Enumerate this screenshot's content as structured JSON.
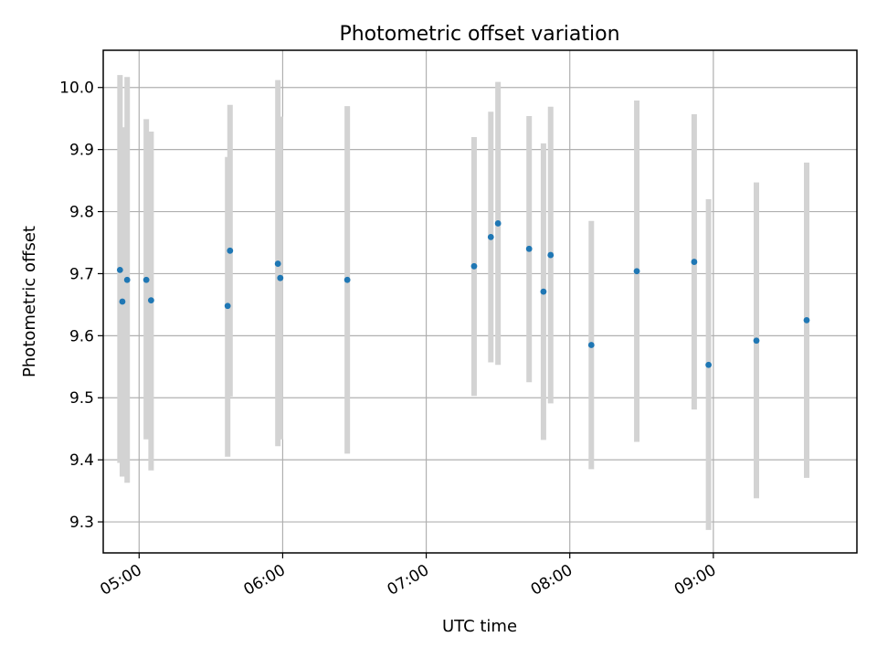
{
  "chart_data": {
    "type": "scatter",
    "title": "Photometric offset variation",
    "xlabel": "UTC time",
    "ylabel": "Photometric offset",
    "x_is_time": true,
    "xlim": [
      "04:45",
      "10:00"
    ],
    "ylim": [
      9.25,
      10.06
    ],
    "x_ticks": [
      "05:00",
      "06:00",
      "07:00",
      "08:00",
      "09:00"
    ],
    "y_ticks": [
      9.3,
      9.4,
      9.5,
      9.6,
      9.7,
      9.8,
      9.9,
      10.0
    ],
    "grid": true,
    "marker_color": "#1f77b4",
    "errorbar_color": "#d3d3d3",
    "points": [
      {
        "x": "04:52",
        "y": 9.706,
        "ylow": 9.395,
        "yhigh": 10.02
      },
      {
        "x": "04:53",
        "y": 9.655,
        "ylow": 9.373,
        "yhigh": 9.936
      },
      {
        "x": "04:55",
        "y": 9.69,
        "ylow": 9.363,
        "yhigh": 10.017
      },
      {
        "x": "05:03",
        "y": 9.69,
        "ylow": 9.433,
        "yhigh": 9.949
      },
      {
        "x": "05:05",
        "y": 9.657,
        "ylow": 9.383,
        "yhigh": 9.929
      },
      {
        "x": "05:37",
        "y": 9.648,
        "ylow": 9.405,
        "yhigh": 9.888
      },
      {
        "x": "05:38",
        "y": 9.737,
        "ylow": 9.502,
        "yhigh": 9.972
      },
      {
        "x": "05:58",
        "y": 9.716,
        "ylow": 9.422,
        "yhigh": 10.012
      },
      {
        "x": "05:59",
        "y": 9.693,
        "ylow": 9.433,
        "yhigh": 9.953
      },
      {
        "x": "06:27",
        "y": 9.69,
        "ylow": 9.41,
        "yhigh": 9.97
      },
      {
        "x": "07:20",
        "y": 9.712,
        "ylow": 9.503,
        "yhigh": 9.92
      },
      {
        "x": "07:27",
        "y": 9.759,
        "ylow": 9.557,
        "yhigh": 9.961
      },
      {
        "x": "07:30",
        "y": 9.781,
        "ylow": 9.553,
        "yhigh": 10.009
      },
      {
        "x": "07:43",
        "y": 9.74,
        "ylow": 9.525,
        "yhigh": 9.954
      },
      {
        "x": "07:49",
        "y": 9.671,
        "ylow": 9.432,
        "yhigh": 9.91
      },
      {
        "x": "07:52",
        "y": 9.73,
        "ylow": 9.491,
        "yhigh": 9.969
      },
      {
        "x": "08:09",
        "y": 9.585,
        "ylow": 9.385,
        "yhigh": 9.785
      },
      {
        "x": "08:28",
        "y": 9.704,
        "ylow": 9.429,
        "yhigh": 9.979
      },
      {
        "x": "08:52",
        "y": 9.719,
        "ylow": 9.481,
        "yhigh": 9.957
      },
      {
        "x": "08:58",
        "y": 9.553,
        "ylow": 9.287,
        "yhigh": 9.82
      },
      {
        "x": "09:18",
        "y": 9.592,
        "ylow": 9.338,
        "yhigh": 9.847
      },
      {
        "x": "09:39",
        "y": 9.625,
        "ylow": 9.371,
        "yhigh": 9.879
      }
    ]
  }
}
